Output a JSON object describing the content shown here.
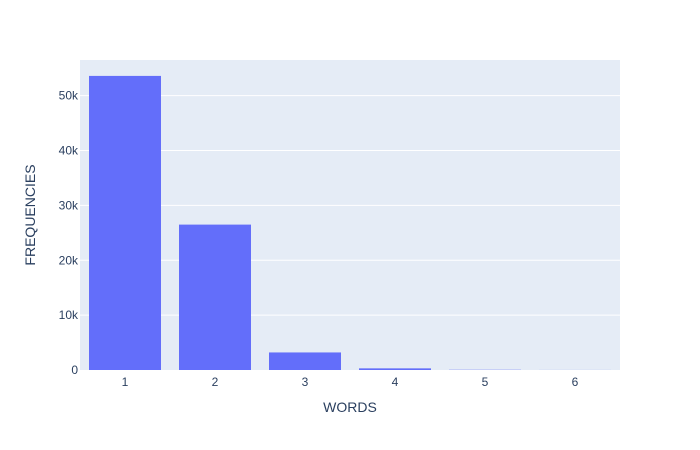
{
  "chart_data": {
    "type": "bar",
    "title": "",
    "xlabel": "WORDS",
    "ylabel": "FREQUENCIES",
    "categories": [
      "1",
      "2",
      "3",
      "4",
      "5",
      "6"
    ],
    "values": [
      53600,
      26500,
      3200,
      300,
      40,
      10
    ],
    "ylim": [
      0,
      56500
    ],
    "yticks": [
      0,
      10000,
      20000,
      30000,
      40000,
      50000
    ],
    "ytick_labels": [
      "0",
      "10k",
      "20k",
      "30k",
      "40k",
      "50k"
    ],
    "grid": true,
    "legend": "none",
    "colors": {
      "bar": "#636efa",
      "plot_background": "#e5ecf6",
      "grid": "#ffffff",
      "text": "#2a3f5f"
    }
  }
}
